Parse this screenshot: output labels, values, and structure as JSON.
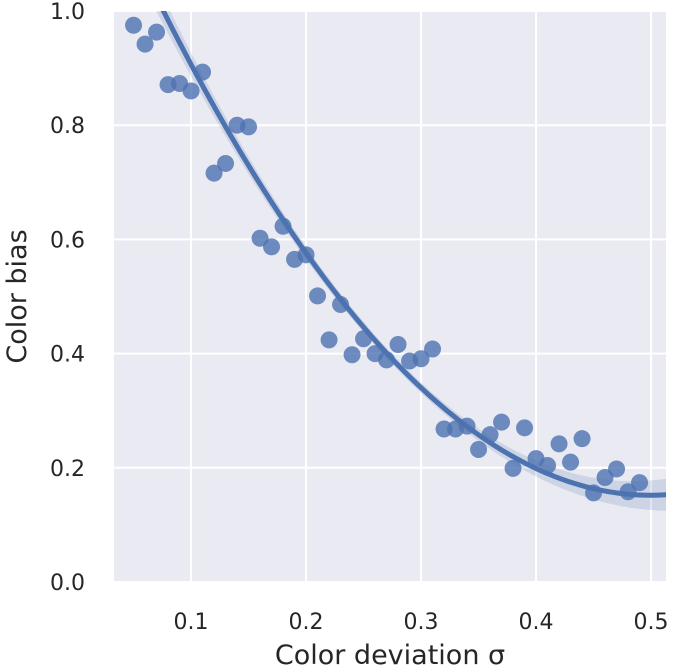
{
  "chart_data": {
    "type": "scatter",
    "title": "",
    "xlabel": "Color deviation σ",
    "ylabel": "Color bias",
    "xlim": [
      0.033,
      0.513
    ],
    "ylim": [
      0.0,
      1.0
    ],
    "xticks": [
      "0.1",
      "0.2",
      "0.3",
      "0.4",
      "0.5"
    ],
    "xtick_values": [
      0.1,
      0.2,
      0.3,
      0.4,
      0.5
    ],
    "yticks": [
      "0.0",
      "0.2",
      "0.4",
      "0.6",
      "0.8",
      "1.0"
    ],
    "ytick_values": [
      0.0,
      0.2,
      0.4,
      0.6,
      0.8,
      1.0
    ],
    "grid": true,
    "background_color": "#eaeaf2",
    "grid_color": "#ffffff",
    "point_color": "#4c72b0",
    "line_color": "#4c72b0",
    "points": [
      {
        "x": 0.05,
        "y": 0.975
      },
      {
        "x": 0.06,
        "y": 0.942
      },
      {
        "x": 0.07,
        "y": 0.963
      },
      {
        "x": 0.08,
        "y": 0.871
      },
      {
        "x": 0.09,
        "y": 0.873
      },
      {
        "x": 0.1,
        "y": 0.86
      },
      {
        "x": 0.11,
        "y": 0.893
      },
      {
        "x": 0.12,
        "y": 0.716
      },
      {
        "x": 0.13,
        "y": 0.733
      },
      {
        "x": 0.14,
        "y": 0.8
      },
      {
        "x": 0.15,
        "y": 0.797
      },
      {
        "x": 0.16,
        "y": 0.602
      },
      {
        "x": 0.17,
        "y": 0.587
      },
      {
        "x": 0.18,
        "y": 0.623
      },
      {
        "x": 0.19,
        "y": 0.565
      },
      {
        "x": 0.2,
        "y": 0.573
      },
      {
        "x": 0.21,
        "y": 0.501
      },
      {
        "x": 0.22,
        "y": 0.424
      },
      {
        "x": 0.23,
        "y": 0.486
      },
      {
        "x": 0.24,
        "y": 0.398
      },
      {
        "x": 0.25,
        "y": 0.426
      },
      {
        "x": 0.26,
        "y": 0.4
      },
      {
        "x": 0.27,
        "y": 0.389
      },
      {
        "x": 0.28,
        "y": 0.416
      },
      {
        "x": 0.29,
        "y": 0.387
      },
      {
        "x": 0.3,
        "y": 0.391
      },
      {
        "x": 0.31,
        "y": 0.408
      },
      {
        "x": 0.32,
        "y": 0.268
      },
      {
        "x": 0.33,
        "y": 0.268
      },
      {
        "x": 0.34,
        "y": 0.273
      },
      {
        "x": 0.35,
        "y": 0.232
      },
      {
        "x": 0.36,
        "y": 0.258
      },
      {
        "x": 0.37,
        "y": 0.28
      },
      {
        "x": 0.38,
        "y": 0.199
      },
      {
        "x": 0.39,
        "y": 0.27
      },
      {
        "x": 0.4,
        "y": 0.216
      },
      {
        "x": 0.41,
        "y": 0.204
      },
      {
        "x": 0.42,
        "y": 0.242
      },
      {
        "x": 0.43,
        "y": 0.21
      },
      {
        "x": 0.44,
        "y": 0.251
      },
      {
        "x": 0.45,
        "y": 0.156
      },
      {
        "x": 0.46,
        "y": 0.183
      },
      {
        "x": 0.47,
        "y": 0.198
      },
      {
        "x": 0.48,
        "y": 0.158
      },
      {
        "x": 0.49,
        "y": 0.174
      }
    ],
    "fit": {
      "kind": "quadratic",
      "x_range": [
        0.05,
        0.513
      ],
      "coefficients": [
        1.3314,
        -4.7217,
        4.7255
      ],
      "ci_halfwidth_center": 0.009,
      "ci_halfwidth_edge": 0.028
    }
  }
}
